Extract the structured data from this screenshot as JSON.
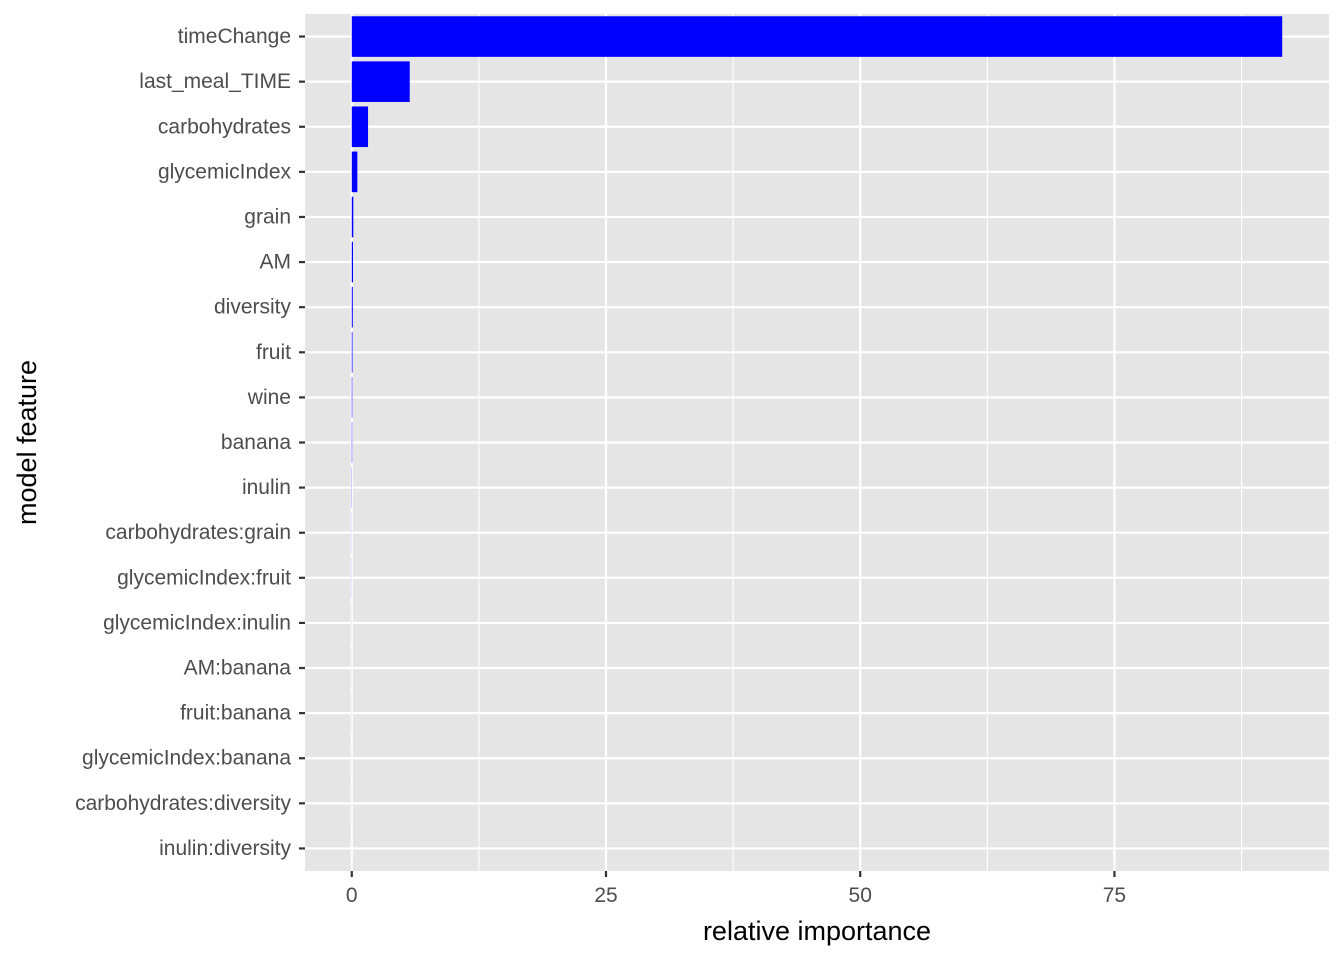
{
  "chart_data": {
    "type": "bar",
    "orientation": "horizontal",
    "title": "",
    "xlabel": "relative importance",
    "ylabel": "model feature",
    "categories": [
      "timeChange",
      "last_meal_TIME",
      "carbohydrates",
      "glycemicIndex",
      "grain",
      "AM",
      "diversity",
      "fruit",
      "wine",
      "banana",
      "inulin",
      "carbohydrates:grain",
      "glycemicIndex:fruit",
      "glycemicIndex:inulin",
      "AM:banana",
      "fruit:banana",
      "glycemicIndex:banana",
      "carbohydrates:diversity",
      "inulin:diversity"
    ],
    "values": [
      91.5,
      5.7,
      1.6,
      0.55,
      0.15,
      0.12,
      0.1,
      0.07,
      0.05,
      0.04,
      0.02,
      0.01,
      0.01,
      0.005,
      0.005,
      0.005,
      0.003,
      0.003,
      0.002
    ],
    "xlim": [
      -4.6,
      96.1
    ],
    "xticks": [
      0,
      25,
      50,
      75
    ],
    "xtick_labels": [
      "0",
      "25",
      "50",
      "75"
    ],
    "grid": true,
    "legend": "none",
    "colors": {
      "bar": "#0000FF",
      "panel_background": "#E5E5E5",
      "grid": "#FFFFFF",
      "tick_label": "#4D4D4D",
      "axis_title": "#000000"
    }
  }
}
